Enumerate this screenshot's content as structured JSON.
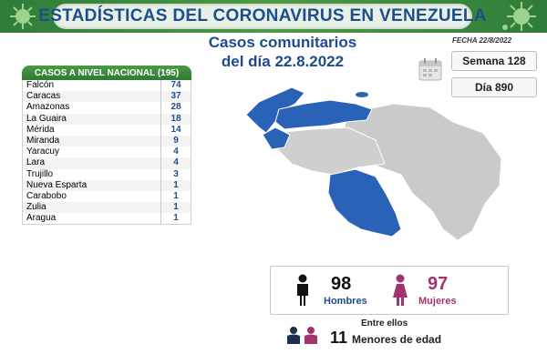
{
  "banner": {
    "title": "ESTADÍSTICAS DEL CORONAVIRUS EN VENEZUELA"
  },
  "header": {
    "line1": "Casos comunitarios",
    "line2": "del día 22.8.2022",
    "fecha": "FECHA 22/8/2022"
  },
  "info": {
    "semana": "Semana 128",
    "dia": "Día 890"
  },
  "table": {
    "header": "CASOS A NIVEL NACIONAL (195)",
    "rows": [
      {
        "state": "Falcón",
        "count": "74"
      },
      {
        "state": "Caracas",
        "count": "37"
      },
      {
        "state": "Amazonas",
        "count": "28"
      },
      {
        "state": "La Guaira",
        "count": "18"
      },
      {
        "state": "Mérida",
        "count": "14"
      },
      {
        "state": "Miranda",
        "count": "9"
      },
      {
        "state": "Yaracuy",
        "count": "4"
      },
      {
        "state": "Lara",
        "count": "4"
      },
      {
        "state": "Trujillo",
        "count": "3"
      },
      {
        "state": "Nueva Esparta",
        "count": "1"
      },
      {
        "state": "Carabobo",
        "count": "1"
      },
      {
        "state": "Zulia",
        "count": "1"
      },
      {
        "state": "Aragua",
        "count": "1"
      }
    ]
  },
  "gender": {
    "men_count": "98",
    "men_label": "Hombres",
    "women_count": "97",
    "women_label": "Mujeres"
  },
  "minors": {
    "intro": "Entre ellos",
    "count": "11",
    "label": "Menores de edad"
  },
  "colors": {
    "accent_blue": "#1d4d8f",
    "banner_green": "#3f8c3e",
    "map_blue": "#2a62b8",
    "map_gray": "#c9c9c9",
    "female": "#a2336f"
  }
}
